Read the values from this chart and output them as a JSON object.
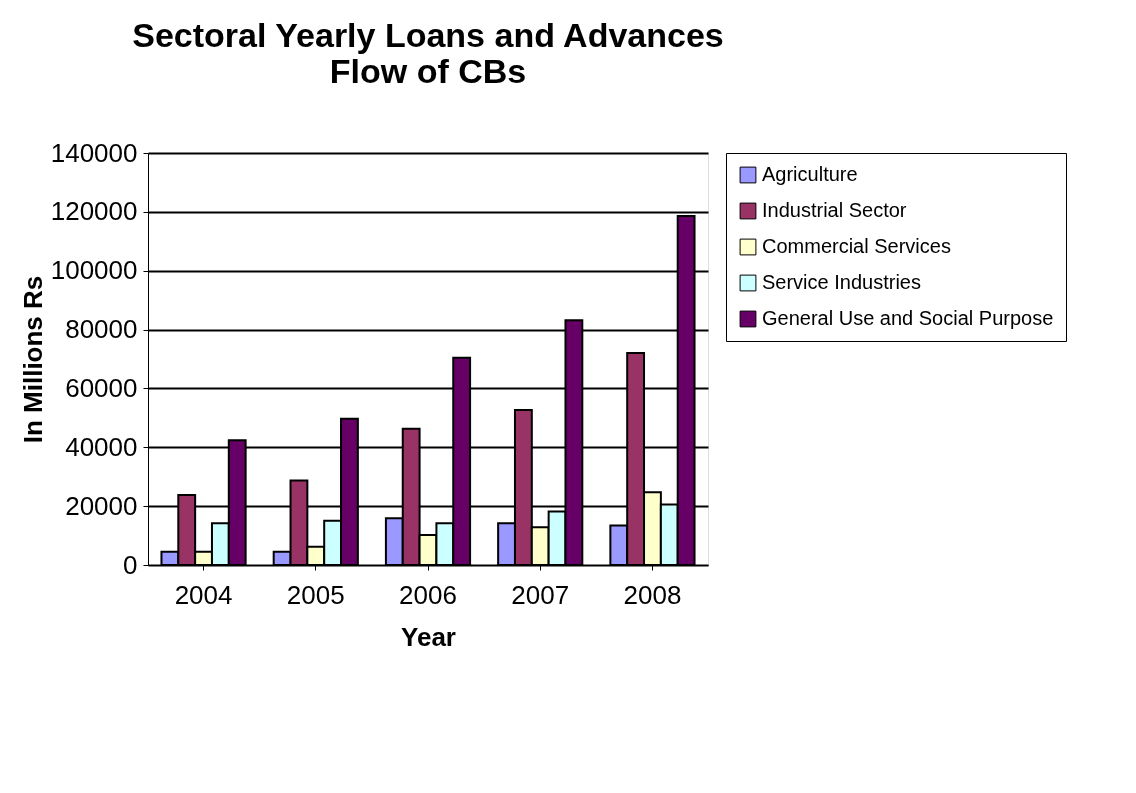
{
  "chart_data": {
    "type": "bar",
    "title": [
      "Sectoral Yearly Loans and Advances",
      "Flow of CBs"
    ],
    "xlabel": "Year",
    "ylabel": "In Millions Rs",
    "categories": [
      "2004",
      "2005",
      "2006",
      "2007",
      "2008"
    ],
    "series": [
      {
        "name": "Agriculture",
        "color": "#9999ff",
        "values": [
          4500,
          4500,
          15900,
          14200,
          13400
        ]
      },
      {
        "name": "Industrial Sector",
        "color": "#993366",
        "values": [
          23800,
          28700,
          46300,
          52700,
          72000
        ]
      },
      {
        "name": "Commercial Services",
        "color": "#ffffcc",
        "values": [
          4500,
          6200,
          10200,
          12800,
          24700
        ]
      },
      {
        "name": "Service Industries",
        "color": "#ccffff",
        "values": [
          14200,
          15000,
          14200,
          18200,
          20600
        ]
      },
      {
        "name": "General Use and Social Purpose",
        "color": "#660066",
        "values": [
          42400,
          49700,
          70400,
          83200,
          118600
        ]
      }
    ],
    "ylim": [
      0,
      140000
    ],
    "yticks": [
      0,
      20000,
      40000,
      60000,
      80000,
      100000,
      120000,
      140000
    ],
    "grid": "y",
    "legend": "right"
  }
}
